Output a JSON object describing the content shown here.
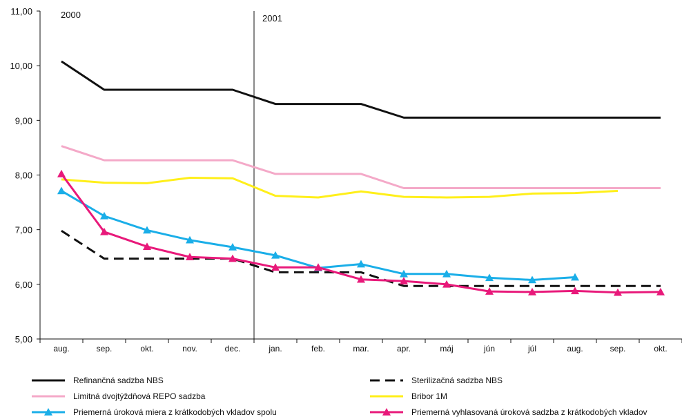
{
  "chart_data": {
    "type": "line",
    "title": "",
    "xlabel": "",
    "ylabel": "",
    "categories": [
      "aug.",
      "sep.",
      "okt.",
      "nov.",
      "dec.",
      "jan.",
      "feb.",
      "mar.",
      "apr.",
      "máj",
      "jún",
      "júl",
      "aug.",
      "sep.",
      "okt."
    ],
    "ylim": [
      5.0,
      11.0
    ],
    "yticks": [
      "5,00",
      "6,00",
      "7,00",
      "8,00",
      "9,00",
      "10,00",
      "11,00"
    ],
    "year_labels": [
      "2000",
      "2001"
    ],
    "grid": false,
    "legend_position": "bottom",
    "series": [
      {
        "name": "Refinančná sadzba NBS",
        "color": "#111111",
        "style": "solid",
        "marker": "none",
        "values": [
          10.08,
          9.56,
          9.56,
          9.56,
          9.56,
          9.3,
          9.3,
          9.3,
          9.05,
          9.05,
          9.05,
          9.05,
          9.05,
          9.05,
          9.05
        ]
      },
      {
        "name": "Sterilizačná sadzba NBS",
        "color": "#111111",
        "style": "dashed",
        "marker": "none",
        "values": [
          6.98,
          6.47,
          6.47,
          6.47,
          6.47,
          6.22,
          6.22,
          6.22,
          5.97,
          5.97,
          5.97,
          5.97,
          5.97,
          5.97,
          5.97
        ]
      },
      {
        "name": "Limitná dvojtýždňová REPO sadzba",
        "color": "#f4a9c8",
        "style": "solid",
        "marker": "none",
        "values": [
          8.53,
          8.27,
          8.27,
          8.27,
          8.27,
          8.02,
          8.02,
          8.02,
          7.76,
          7.76,
          7.76,
          7.76,
          7.76,
          7.76,
          7.76
        ]
      },
      {
        "name": "Bribor 1M",
        "color": "#ffef1a",
        "style": "solid",
        "marker": "none",
        "values": [
          7.92,
          7.86,
          7.85,
          7.95,
          7.94,
          7.62,
          7.59,
          7.7,
          7.6,
          7.59,
          7.6,
          7.66,
          7.67,
          7.71,
          null
        ]
      },
      {
        "name": "Priemerná úroková miera z krátkodobých vkladov spolu",
        "color": "#1aaee8",
        "style": "solid",
        "marker": "triangle",
        "values": [
          7.71,
          7.25,
          6.99,
          6.81,
          6.68,
          6.53,
          6.3,
          6.37,
          6.19,
          6.19,
          6.12,
          6.08,
          6.13,
          null,
          null
        ]
      },
      {
        "name": "Priemerná vyhlasovaná úroková sadzba z krátkodobých vkladov",
        "color": "#e8197a",
        "style": "solid",
        "marker": "triangle",
        "values": [
          8.02,
          6.96,
          6.69,
          6.5,
          6.47,
          6.31,
          6.31,
          6.09,
          6.06,
          6.0,
          5.87,
          5.86,
          5.88,
          5.85,
          5.86
        ]
      }
    ]
  }
}
